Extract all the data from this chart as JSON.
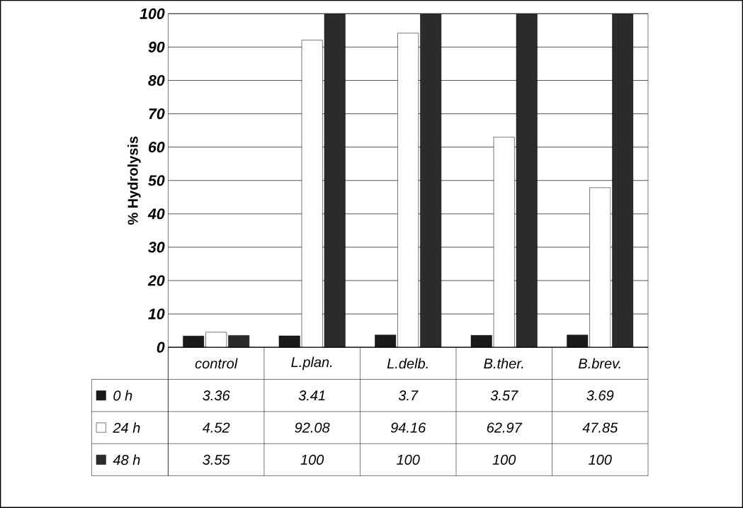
{
  "chart_data": {
    "type": "bar",
    "ylabel": "% Hydrolysis",
    "categories": [
      "control",
      "L.plan.",
      "L.delb.",
      "B.ther.",
      "B.brev."
    ],
    "series": [
      {
        "name": "0 h",
        "color": "#1a1a1a",
        "values": [
          3.36,
          3.41,
          3.7,
          3.57,
          3.69
        ]
      },
      {
        "name": "24 h",
        "color": "#ffffff",
        "values": [
          4.52,
          92.08,
          94.16,
          62.97,
          47.85
        ]
      },
      {
        "name": "48 h",
        "color": "#2b2b2b",
        "values": [
          3.55,
          100,
          100,
          100,
          100
        ]
      }
    ],
    "ylim": [
      0,
      100
    ],
    "yticks": [
      0,
      10,
      20,
      30,
      40,
      50,
      60,
      70,
      80,
      90,
      100
    ],
    "grid": "y",
    "legend": "bottom",
    "data_labels": true
  }
}
